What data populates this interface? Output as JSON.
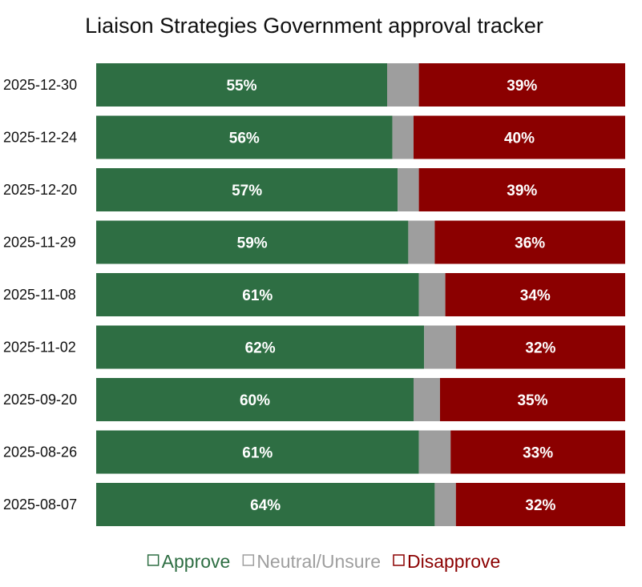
{
  "chart_data": {
    "type": "bar",
    "orientation": "horizontal",
    "stacked": true,
    "title": "Liaison Strategies Government approval tracker",
    "categories": [
      "2025-12-30",
      "2025-12-24",
      "2025-12-20",
      "2025-11-29",
      "2025-11-08",
      "2025-11-02",
      "2025-09-20",
      "2025-08-26",
      "2025-08-07"
    ],
    "series": [
      {
        "name": "Approve",
        "color": "#2e6e43",
        "values": [
          55,
          56,
          57,
          59,
          61,
          62,
          60,
          61,
          64
        ],
        "labels": [
          "55%",
          "56%",
          "57%",
          "59%",
          "61%",
          "62%",
          "60%",
          "61%",
          "64%"
        ]
      },
      {
        "name": "Neutral/Unsure",
        "color": "#9e9e9e",
        "values": [
          6,
          4,
          4,
          5,
          5,
          6,
          5,
          6,
          4
        ]
      },
      {
        "name": "Disapprove",
        "color": "#8b0000",
        "values": [
          39,
          40,
          39,
          36,
          34,
          32,
          35,
          33,
          32
        ],
        "labels": [
          "39%",
          "40%",
          "39%",
          "36%",
          "34%",
          "32%",
          "35%",
          "33%",
          "32%"
        ]
      }
    ],
    "xlim": [
      0,
      100
    ],
    "grid": false,
    "legend_position": "bottom"
  }
}
